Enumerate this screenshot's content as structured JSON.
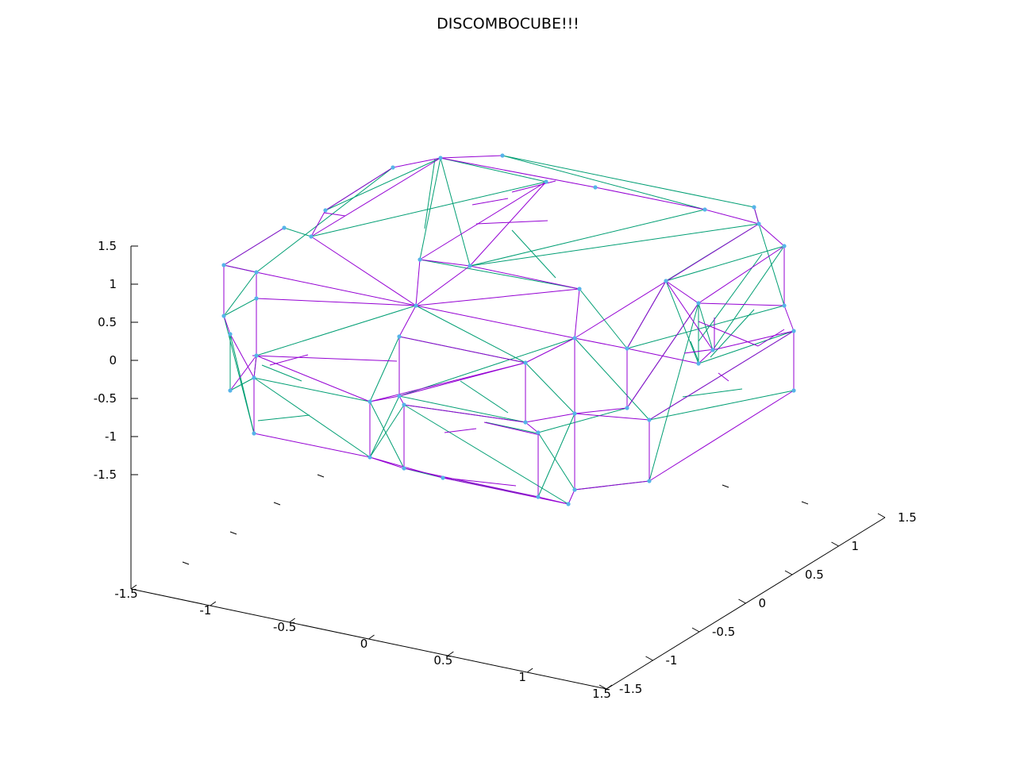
{
  "chart_data": {
    "type": "wireframe-3d",
    "title": "DISCOMBOCUBE!!!",
    "xlabel": "",
    "ylabel": "",
    "zlabel": "",
    "x_ticks": [
      "-1.5",
      "-1",
      "-0.5",
      "0",
      "0.5",
      "1",
      "1.5"
    ],
    "y_ticks": [
      "-1.5",
      "-1",
      "-0.5",
      "0",
      "0.5",
      "1",
      "1.5"
    ],
    "z_ticks": [
      "1.5",
      "1",
      "0.5",
      "0",
      "-0.5",
      "-1",
      "-1.5"
    ],
    "xlim": [
      -1.5,
      1.5
    ],
    "ylim": [
      -1.5,
      1.5
    ],
    "zlim": [
      -1.5,
      1.5
    ],
    "grid": false,
    "legend": "none",
    "colors": {
      "edges_primary": "#9400d3",
      "edges_secondary": "#009e73",
      "vertices": "#56b4e9",
      "axes": "#000000"
    }
  }
}
